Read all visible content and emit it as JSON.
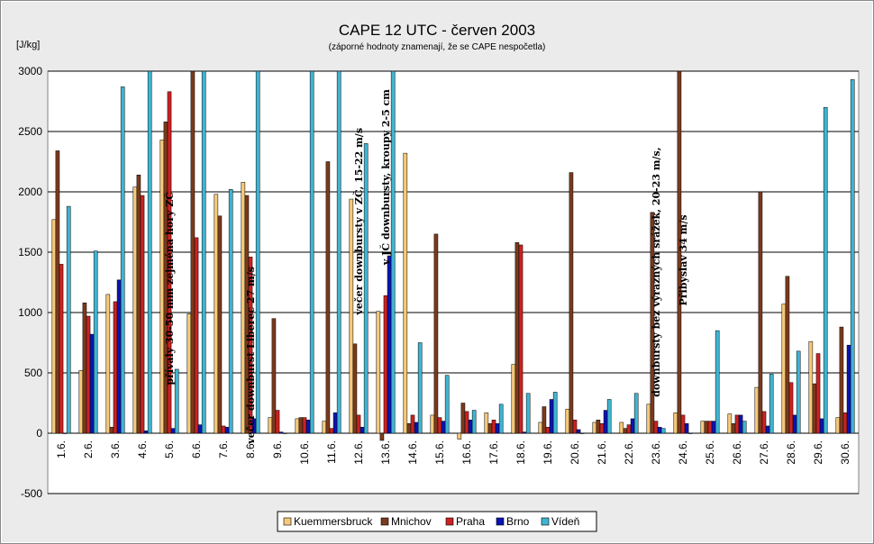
{
  "chart_data": {
    "type": "bar",
    "title": "CAPE 12 UTC - červen 2003",
    "subtitle": "(záporné hodnoty znamenají, že se CAPE nespočetla)",
    "ylabel": "[J/kg]",
    "ylim": [
      -500,
      3000
    ],
    "yticks": [
      "-500",
      "0",
      "500",
      "1000",
      "1500",
      "2000",
      "2500",
      "3000"
    ],
    "grid": true,
    "legend_position": "bottom",
    "categories": [
      "1.6.",
      "2.6.",
      "3.6.",
      "4.6.",
      "5.6.",
      "6.6.",
      "7.6.",
      "8.6.",
      "9.6.",
      "10.6.",
      "11.6.",
      "12.6.",
      "13.6.",
      "14.6.",
      "15.6.",
      "16.6.",
      "17.6.",
      "18.6.",
      "19.6.",
      "20.6.",
      "21.6.",
      "22.6.",
      "23.6.",
      "24.6.",
      "25.6.",
      "26.6.",
      "27.6.",
      "28.6.",
      "29.6.",
      "30.6."
    ],
    "series": [
      {
        "name": "Kuemmersbruck",
        "color": "#f5c97a",
        "values": [
          1770,
          520,
          1150,
          2040,
          2430,
          990,
          1980,
          2080,
          130,
          120,
          100,
          1940,
          1010,
          2320,
          150,
          -50,
          170,
          570,
          90,
          200,
          90,
          90,
          240,
          170,
          100,
          160,
          380,
          1070,
          760,
          130
        ]
      },
      {
        "name": "Mnichov",
        "color": "#7b3a1c",
        "values": [
          2340,
          1080,
          50,
          2140,
          2580,
          3000,
          1800,
          1970,
          950,
          130,
          2250,
          740,
          -60,
          80,
          1650,
          250,
          80,
          1580,
          220,
          2160,
          110,
          40,
          1830,
          3000,
          100,
          80,
          2000,
          1300,
          410,
          880
        ]
      },
      {
        "name": "Praha",
        "color": "#cc2222",
        "values": [
          1400,
          970,
          1090,
          1970,
          2830,
          1620,
          60,
          1460,
          190,
          130,
          40,
          150,
          1140,
          150,
          130,
          180,
          110,
          1560,
          50,
          110,
          80,
          70,
          100,
          150,
          100,
          150,
          180,
          420,
          660,
          170
        ]
      },
      {
        "name": "Brno",
        "color": "#0a14b4",
        "values": [
          0,
          820,
          1270,
          20,
          40,
          70,
          50,
          120,
          10,
          110,
          170,
          50,
          1470,
          90,
          100,
          110,
          80,
          10,
          280,
          30,
          190,
          120,
          50,
          80,
          100,
          150,
          60,
          150,
          120,
          730
        ]
      },
      {
        "name": "Vídeň",
        "color": "#3fb5d3",
        "values": [
          1880,
          1510,
          2870,
          3000,
          530,
          3000,
          2020,
          3000,
          0,
          3000,
          3000,
          2400,
          3000,
          750,
          480,
          190,
          240,
          330,
          340,
          0,
          280,
          330,
          40,
          0,
          850,
          100,
          490,
          680,
          2700,
          2930
        ]
      }
    ],
    "annotations": [
      {
        "text": "přívaly 30-50 mm zejména hory ZČ",
        "category": "5.6.",
        "y_top": 2000
      },
      {
        "text": "večer downburst Liberec 27 m/s",
        "category": "8.6.",
        "y_top": 1380
      },
      {
        "text": "večer downbursty v ZČ, 15-22 m/s",
        "category": "12.6.",
        "y_top": 2530
      },
      {
        "text": "v JČ downbursty, kroupy 2-5 cm",
        "category": "13.6.",
        "y_top": 2850
      },
      {
        "text": "downbursty bez výrazných srážek, 20-23 m/s,",
        "category": "23.6.",
        "y_top": 2370
      },
      {
        "text": "Přibyslav 34 m/s",
        "category": "24.6.",
        "y_top": 1810
      }
    ]
  }
}
